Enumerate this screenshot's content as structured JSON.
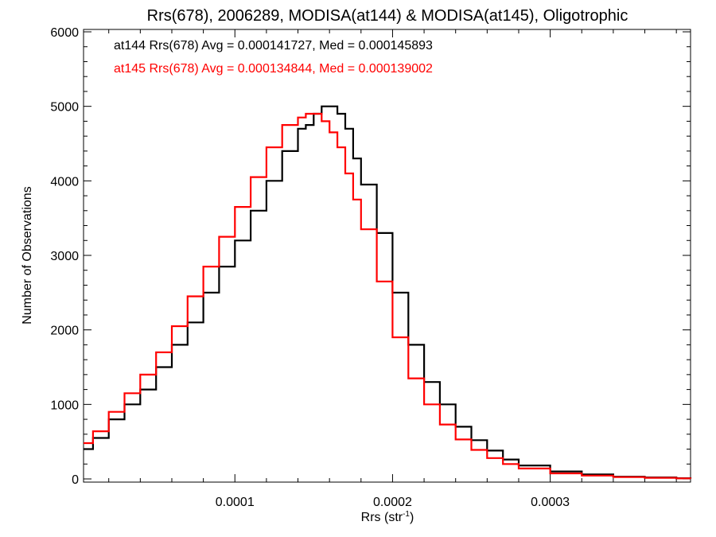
{
  "chart_data": {
    "type": "line",
    "title": "Rrs(678), 2006289, MODISA(at144) & MODISA(at145), Oligotrophic",
    "xlabel_main": "Rrs (str",
    "xlabel_sup": "-1",
    "xlabel_end": ")",
    "ylabel": "Number of Observations",
    "xlim": [
      4e-06,
      0.000389
    ],
    "ylim": [
      0,
      6000
    ],
    "xticks": [
      0.0001,
      0.0002,
      0.0003
    ],
    "xtick_labels": [
      "0.0001",
      "0.0002",
      "0.0003"
    ],
    "yticks": [
      0,
      1000,
      2000,
      3000,
      4000,
      5000,
      6000
    ],
    "ytick_labels": [
      "0",
      "1000",
      "2000",
      "3000",
      "4000",
      "5000",
      "6000"
    ],
    "grid": false,
    "legend_placement": "top-left",
    "series": [
      {
        "name": "at144",
        "label": "at144 Rrs(678) Avg = 0.000141727, Med = 0.000145893",
        "color": "#000000",
        "x": [
          4e-06,
          1e-05,
          2e-05,
          3e-05,
          4e-05,
          5e-05,
          6e-05,
          7e-05,
          8e-05,
          9e-05,
          0.0001,
          0.00011,
          0.00012,
          0.00013,
          0.00014,
          0.000145,
          0.00015,
          0.000155,
          0.00016,
          0.000165,
          0.00017,
          0.000175,
          0.00018,
          0.00019,
          0.0002,
          0.00021,
          0.00022,
          0.00023,
          0.00024,
          0.00025,
          0.00026,
          0.00027,
          0.00028,
          0.0003,
          0.00032,
          0.00034,
          0.00036,
          0.00038,
          0.000389
        ],
        "y": [
          400,
          550,
          800,
          1000,
          1200,
          1500,
          1800,
          2100,
          2500,
          2850,
          3200,
          3600,
          4000,
          4400,
          4700,
          4750,
          4900,
          5000,
          5000,
          4900,
          4700,
          4300,
          3950,
          3300,
          2500,
          1800,
          1300,
          1000,
          700,
          520,
          380,
          260,
          180,
          100,
          60,
          30,
          20,
          10,
          5
        ]
      },
      {
        "name": "at145",
        "label": "at145 Rrs(678) Avg = 0.000134844, Med = 0.000139002",
        "color": "#ff0000",
        "x": [
          4e-06,
          1e-05,
          2e-05,
          3e-05,
          4e-05,
          5e-05,
          6e-05,
          7e-05,
          8e-05,
          9e-05,
          0.0001,
          0.00011,
          0.00012,
          0.00013,
          0.00014,
          0.000145,
          0.00015,
          0.000155,
          0.00016,
          0.000165,
          0.00017,
          0.000175,
          0.00018,
          0.00019,
          0.0002,
          0.00021,
          0.00022,
          0.00023,
          0.00024,
          0.00025,
          0.00026,
          0.00027,
          0.00028,
          0.0003,
          0.00032,
          0.00034,
          0.00036,
          0.00038,
          0.000389
        ],
        "y": [
          480,
          640,
          900,
          1150,
          1400,
          1700,
          2050,
          2450,
          2850,
          3250,
          3650,
          4050,
          4450,
          4750,
          4850,
          4900,
          4900,
          4800,
          4650,
          4450,
          4100,
          3750,
          3350,
          2650,
          1900,
          1350,
          1000,
          730,
          530,
          390,
          280,
          200,
          140,
          75,
          45,
          25,
          15,
          8,
          4
        ]
      }
    ]
  }
}
